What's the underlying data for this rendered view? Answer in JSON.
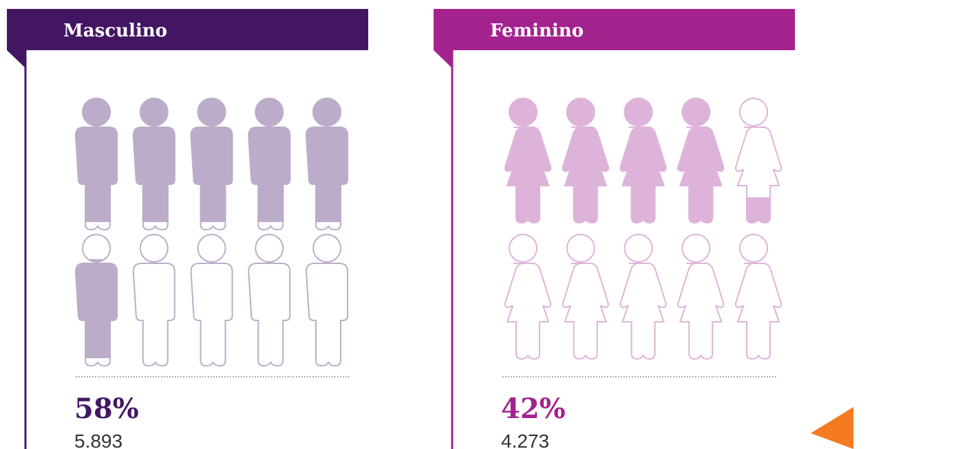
{
  "chart_data": [
    {
      "type": "pictogram",
      "title": "Masculino",
      "values": [
        58
      ],
      "value_labels": [
        "58%"
      ],
      "ylim": [
        0,
        100
      ],
      "count": 5893,
      "count_label": "5.893",
      "color": "#431663",
      "icon_color": "#bbadc9",
      "icon": "male"
    },
    {
      "type": "pictogram",
      "title": "Feminino",
      "values": [
        42
      ],
      "value_labels": [
        "42%"
      ],
      "ylim": [
        0,
        100
      ],
      "count": 4273,
      "count_label": "4.273",
      "color": "#a3238e",
      "icon_color": "#deb3d9",
      "icon": "female"
    }
  ]
}
